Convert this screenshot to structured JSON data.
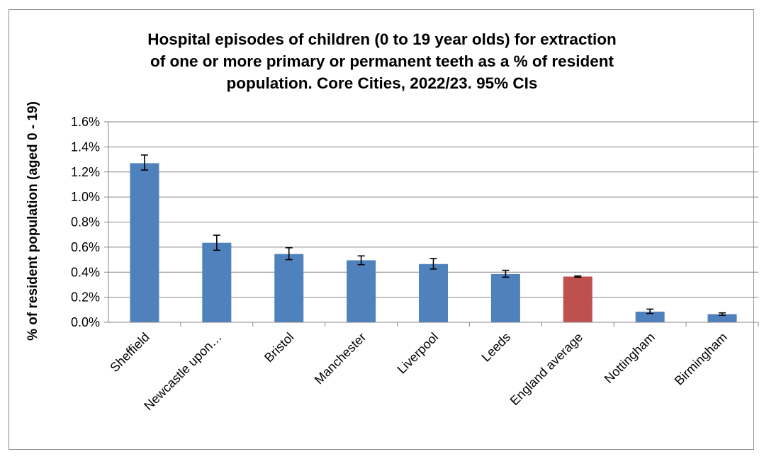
{
  "chart_data": {
    "type": "bar",
    "title": "Hospital episodes of children (0 to 19 year olds) for extraction of one or more primary or permanent teeth as a % of resident population. Core Cities, 2022/23. 95% CIs",
    "title_lines": [
      "Hospital episodes of children (0 to 19 year olds) for extraction",
      "of one or more primary or permanent teeth as a % of resident",
      "population. Core Cities, 2022/23. 95% CIs"
    ],
    "xlabel": "",
    "ylabel": "% of resident population (aged 0 - 19)",
    "ylim": [
      0,
      1.6
    ],
    "y_unit": "%",
    "yticks": [
      "0.0%",
      "0.2%",
      "0.4%",
      "0.6%",
      "0.8%",
      "1.0%",
      "1.2%",
      "1.4%",
      "1.6%"
    ],
    "grid": true,
    "categories": [
      "Sheffield",
      "Newcastle upon…",
      "Bristol",
      "Manchester",
      "Liverpool",
      "Leeds",
      "England average",
      "Nottingham",
      "Birmingham"
    ],
    "values": [
      1.27,
      0.635,
      0.545,
      0.495,
      0.465,
      0.385,
      0.365,
      0.085,
      0.065
    ],
    "ci_lower": [
      1.215,
      0.575,
      0.5,
      0.46,
      0.425,
      0.36,
      0.36,
      0.07,
      0.055
    ],
    "ci_upper": [
      1.335,
      0.695,
      0.595,
      0.53,
      0.51,
      0.415,
      0.37,
      0.105,
      0.075
    ],
    "colors": [
      "#4f81bd",
      "#4f81bd",
      "#4f81bd",
      "#4f81bd",
      "#4f81bd",
      "#4f81bd",
      "#c0504d",
      "#4f81bd",
      "#4f81bd"
    ]
  }
}
